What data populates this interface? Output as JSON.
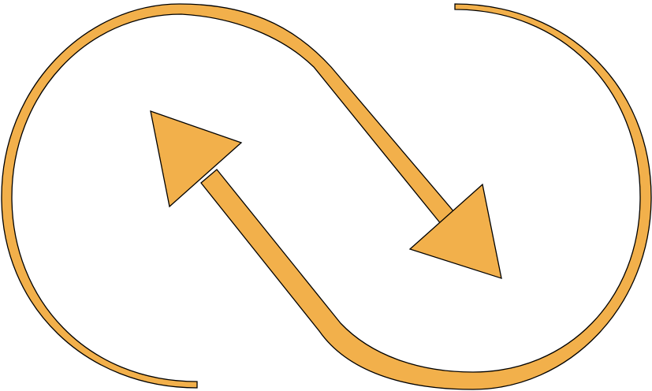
{
  "graphic": {
    "icon": "infinity-arrows-icon",
    "fill_color": "#F2B04B",
    "stroke_color": "#000000",
    "background_color": "#FFFFFF"
  }
}
